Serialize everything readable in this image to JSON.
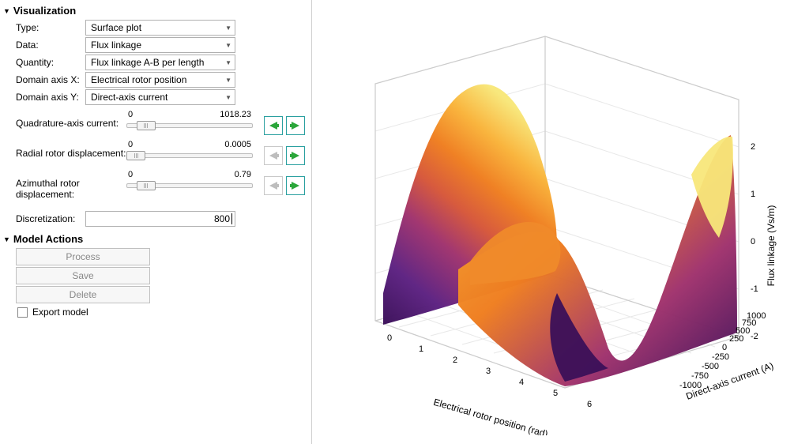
{
  "sections": {
    "visualization": {
      "title": "Visualization"
    },
    "model_actions": {
      "title": "Model Actions"
    }
  },
  "form": {
    "type": {
      "label": "Type:",
      "value": "Surface plot"
    },
    "data": {
      "label": "Data:",
      "value": "Flux linkage"
    },
    "quantity": {
      "label": "Quantity:",
      "value": "Flux linkage A-B per length"
    },
    "domain_x": {
      "label": "Domain axis X:",
      "value": "Electrical rotor position"
    },
    "domain_y": {
      "label": "Domain axis Y:",
      "value": "Direct-axis current"
    }
  },
  "sliders": {
    "quad_current": {
      "label": "Quadrature-axis current:",
      "min": "0",
      "max": "1018.23",
      "thumb_pct": 8,
      "left_enabled": true,
      "right_enabled": true
    },
    "radial_disp": {
      "label": "Radial rotor displacement:",
      "min": "0",
      "max": "0.0005",
      "thumb_pct": 0,
      "left_enabled": false,
      "right_enabled": true
    },
    "azim_disp": {
      "label": "Azimuthal rotor displacement:",
      "min": "0",
      "max": "0.79",
      "thumb_pct": 8,
      "left_enabled": false,
      "right_enabled": true
    }
  },
  "discretization": {
    "label": "Discretization:",
    "value": "800"
  },
  "actions": {
    "process": {
      "label": "Process",
      "enabled": false
    },
    "save": {
      "label": "Save",
      "enabled": false
    },
    "delete": {
      "label": "Delete",
      "enabled": false
    },
    "export_model": {
      "label": "Export model",
      "checked": false
    }
  },
  "plot": {
    "type": "surface3d",
    "x_axis": {
      "label": "Electrical rotor position (rad)",
      "ticks": [
        "0",
        "1",
        "2",
        "3",
        "4",
        "5",
        "6"
      ],
      "range": [
        0,
        6.3
      ],
      "fontsize": 11
    },
    "y_axis": {
      "label": "Direct-axis current (A)",
      "ticks": [
        "-1000",
        "-750",
        "-500",
        "-250",
        "0",
        "250",
        "500",
        "750",
        "1000"
      ],
      "range": [
        -1000,
        1000
      ],
      "fontsize": 11
    },
    "z_axis": {
      "label": "Flux linkage (Vs/m)",
      "ticks": [
        "-2",
        "-1",
        "0",
        "1",
        "2"
      ],
      "range": [
        -2.5,
        2.5
      ],
      "fontsize": 11
    },
    "background_color": "#ffffff",
    "grid_color": "#e8e8e8",
    "box_edge_color": "#cccccc",
    "colormap": {
      "name": "viridis-like",
      "stops": [
        {
          "t": 0.0,
          "color": "#3b1059"
        },
        {
          "t": 0.2,
          "color": "#5d2282"
        },
        {
          "t": 0.4,
          "color": "#a0336e"
        },
        {
          "t": 0.55,
          "color": "#d6573a"
        },
        {
          "t": 0.7,
          "color": "#ef7e20"
        },
        {
          "t": 0.85,
          "color": "#f9b33a"
        },
        {
          "t": 1.0,
          "color": "#f8e77a"
        }
      ]
    },
    "surface_formula": "z ≈ amplitude(y) * sin(x + phase), amplitude grows with |y|",
    "approx_peaks": {
      "z_min": -2.5,
      "z_max": 2.5
    }
  },
  "colors": {
    "teal_button_border": "#2aa0a0",
    "green_arrow": "#2aa63a",
    "gray_arrow": "#bdbdbd",
    "dropdown_border": "#b0b0b0"
  }
}
